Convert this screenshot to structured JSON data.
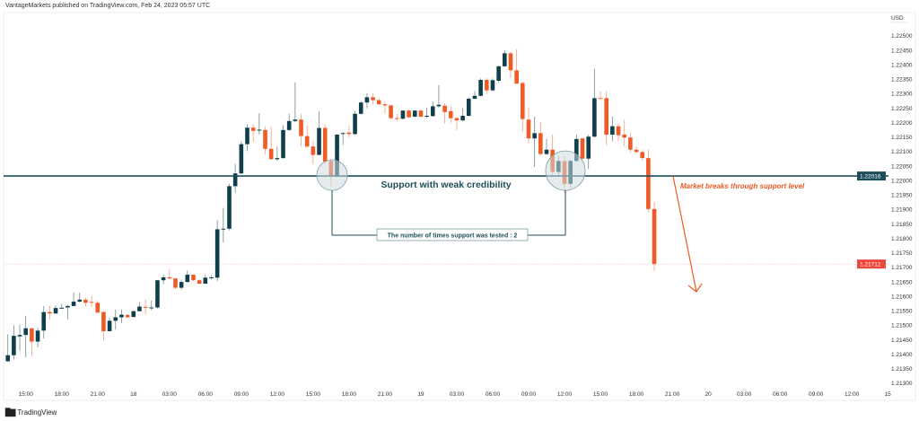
{
  "header": {
    "published": "VantageMarkets published on TradingView.com, Feb 24, 2023 05:57 UTC"
  },
  "footer": {
    "brand": "TradingView",
    "logo_icon": "tradingview-logo-icon"
  },
  "colors": {
    "up": "#0f3f4a",
    "down": "#f05a24",
    "support_line": "#1d4f5a",
    "circle_fill": "#cfdde0",
    "last_price": "#f0463c",
    "annotation_orange": "#f05a24"
  },
  "chart_data": {
    "type": "candlestick",
    "currency_label": "USD",
    "ylim": [
      1.21275,
      1.22525
    ],
    "y_ticks": [
      "1.22500",
      "1.22450",
      "1.22400",
      "1.22350",
      "1.22300",
      "1.22250",
      "1.22200",
      "1.22150",
      "1.22100",
      "1.22050",
      "1.22000",
      "1.21950",
      "1.21900",
      "1.21850",
      "1.21800",
      "1.21750",
      "1.21700",
      "1.21650",
      "1.21600",
      "1.21550",
      "1.21500",
      "1.21450",
      "1.21400",
      "1.21350",
      "1.21300"
    ],
    "x_ticks": [
      "15:00",
      "18:00",
      "21:00",
      "18",
      "03:00",
      "06:00",
      "09:00",
      "12:00",
      "15:00",
      "18:00",
      "21:00",
      "19",
      "03:00",
      "06:00",
      "09:00",
      "12:00",
      "15:00",
      "18:00",
      "21:00",
      "20",
      "03:00",
      "06:00",
      "09:00",
      "12:00",
      "15"
    ],
    "candles_ohlc": [
      [
        1.21376,
        1.21469,
        1.21375,
        1.21397
      ],
      [
        1.21397,
        1.215,
        1.21382,
        1.21464
      ],
      [
        1.21462,
        1.21503,
        1.21413,
        1.21467
      ],
      [
        1.21467,
        1.21533,
        1.2139,
        1.2149
      ],
      [
        1.2149,
        1.21492,
        1.21394,
        1.21444
      ],
      [
        1.21444,
        1.21492,
        1.21424,
        1.21482
      ],
      [
        1.21482,
        1.21567,
        1.21455,
        1.21546
      ],
      [
        1.21546,
        1.21568,
        1.21521,
        1.21541
      ],
      [
        1.21541,
        1.21569,
        1.21541,
        1.2156
      ],
      [
        1.21559,
        1.21574,
        1.21557,
        1.21561
      ],
      [
        1.21562,
        1.2157,
        1.21521,
        1.21567
      ],
      [
        1.21567,
        1.21614,
        1.21567,
        1.21582
      ],
      [
        1.21582,
        1.21613,
        1.2158,
        1.21589
      ],
      [
        1.21589,
        1.21596,
        1.21565,
        1.21578
      ],
      [
        1.21581,
        1.21601,
        1.21565,
        1.2158
      ],
      [
        1.21578,
        1.21585,
        1.21544,
        1.21544
      ],
      [
        1.21546,
        1.21549,
        1.21449,
        1.2148
      ],
      [
        1.2148,
        1.21527,
        1.2148,
        1.21516
      ],
      [
        1.21516,
        1.21555,
        1.21485,
        1.21528
      ],
      [
        1.21528,
        1.21555,
        1.21508,
        1.21537
      ],
      [
        1.21536,
        1.21539,
        1.21526,
        1.21528
      ],
      [
        1.21529,
        1.21551,
        1.21529,
        1.21549
      ],
      [
        1.21549,
        1.2158,
        1.21549,
        1.21565
      ],
      [
        1.21564,
        1.21589,
        1.21537,
        1.21563
      ],
      [
        1.21561,
        1.21586,
        1.21552,
        1.21562
      ],
      [
        1.21562,
        1.21656,
        1.21558,
        1.21656
      ],
      [
        1.21656,
        1.21676,
        1.21642,
        1.21666
      ],
      [
        1.21666,
        1.21694,
        1.2166,
        1.21662
      ],
      [
        1.21662,
        1.21665,
        1.21624,
        1.2163
      ],
      [
        1.2163,
        1.21658,
        1.21624,
        1.2165
      ],
      [
        1.2165,
        1.21689,
        1.21648,
        1.21675
      ],
      [
        1.21675,
        1.21675,
        1.21653,
        1.21656
      ],
      [
        1.21656,
        1.2166,
        1.21642,
        1.21644
      ],
      [
        1.21644,
        1.21675,
        1.21644,
        1.21665
      ],
      [
        1.21665,
        1.21673,
        1.21658,
        1.21666
      ],
      [
        1.21665,
        1.21864,
        1.21653,
        1.21832
      ],
      [
        1.21832,
        1.21906,
        1.21787,
        1.21834
      ],
      [
        1.21834,
        1.21989,
        1.21828,
        1.21981
      ],
      [
        1.21981,
        1.22058,
        1.21958,
        1.22025
      ],
      [
        1.22025,
        1.22136,
        1.22023,
        1.22126
      ],
      [
        1.22126,
        1.22195,
        1.22102,
        1.22183
      ],
      [
        1.22183,
        1.22195,
        1.22133,
        1.22172
      ],
      [
        1.22175,
        1.22233,
        1.22159,
        1.22176
      ],
      [
        1.22175,
        1.22188,
        1.22092,
        1.2211
      ],
      [
        1.2211,
        1.22185,
        1.22074,
        1.22074
      ],
      [
        1.22074,
        1.22118,
        1.22068,
        1.22078
      ],
      [
        1.22078,
        1.22192,
        1.22076,
        1.22175
      ],
      [
        1.22175,
        1.22231,
        1.22171,
        1.22206
      ],
      [
        1.22206,
        1.2234,
        1.22202,
        1.22211
      ],
      [
        1.22211,
        1.22231,
        1.22118,
        1.22154
      ],
      [
        1.22154,
        1.2219,
        1.22113,
        1.22118
      ],
      [
        1.22118,
        1.22138,
        1.22056,
        1.22089
      ],
      [
        1.22089,
        1.2224,
        1.22087,
        1.22182
      ],
      [
        1.22182,
        1.22195,
        1.22056,
        1.22066
      ],
      [
        1.22068,
        1.22076,
        1.21978,
        1.22016
      ],
      [
        1.22014,
        1.22161,
        1.22012,
        1.22159
      ],
      [
        1.22163,
        1.22169,
        1.22123,
        1.22164
      ],
      [
        1.22166,
        1.2219,
        1.22149,
        1.22161
      ],
      [
        1.22161,
        1.22242,
        1.22159,
        1.22231
      ],
      [
        1.22231,
        1.22275,
        1.22228,
        1.2227
      ],
      [
        1.2227,
        1.22302,
        1.2225,
        1.22288
      ],
      [
        1.22288,
        1.22302,
        1.22264,
        1.22278
      ],
      [
        1.22278,
        1.22283,
        1.2226,
        1.22264
      ],
      [
        1.22264,
        1.22273,
        1.22231,
        1.2226
      ],
      [
        1.2226,
        1.22262,
        1.22211,
        1.22216
      ],
      [
        1.22216,
        1.22231,
        1.22206,
        1.22215
      ],
      [
        1.22214,
        1.22243,
        1.22211,
        1.22242
      ],
      [
        1.22242,
        1.22244,
        1.22216,
        1.22219
      ],
      [
        1.22221,
        1.22244,
        1.22219,
        1.22242
      ],
      [
        1.22242,
        1.22244,
        1.22219,
        1.22221
      ],
      [
        1.22223,
        1.22252,
        1.22216,
        1.22224
      ],
      [
        1.22223,
        1.22273,
        1.22221,
        1.22257
      ],
      [
        1.22257,
        1.2233,
        1.22252,
        1.22262
      ],
      [
        1.22259,
        1.22268,
        1.22198,
        1.22237
      ],
      [
        1.2224,
        1.22255,
        1.222,
        1.22216
      ],
      [
        1.22216,
        1.22221,
        1.22175,
        1.22208
      ],
      [
        1.22208,
        1.2225,
        1.22206,
        1.22224
      ],
      [
        1.22224,
        1.22288,
        1.22221,
        1.22283
      ],
      [
        1.22283,
        1.22309,
        1.22281,
        1.22293
      ],
      [
        1.22293,
        1.22353,
        1.22291,
        1.22348
      ],
      [
        1.22348,
        1.22355,
        1.22299,
        1.22312
      ],
      [
        1.22312,
        1.22353,
        1.22309,
        1.22347
      ],
      [
        1.22345,
        1.22397,
        1.2234,
        1.22395
      ],
      [
        1.22395,
        1.2245,
        1.22392,
        1.2244
      ],
      [
        1.2244,
        1.22446,
        1.22355,
        1.22381
      ],
      [
        1.22381,
        1.22454,
        1.22335,
        1.22335
      ],
      [
        1.22337,
        1.22343,
        1.22169,
        1.22213
      ],
      [
        1.22211,
        1.22252,
        1.22128,
        1.22146
      ],
      [
        1.22146,
        1.22221,
        1.22047,
        1.22164
      ],
      [
        1.22164,
        1.22202,
        1.22087,
        1.22092
      ],
      [
        1.22092,
        1.22144,
        1.22089,
        1.22107
      ],
      [
        1.22107,
        1.22159,
        1.22014,
        1.2203
      ],
      [
        1.2203,
        1.22085,
        1.22014,
        1.22068
      ],
      [
        1.22068,
        1.22085,
        1.21958,
        1.21989
      ],
      [
        1.21989,
        1.22071,
        1.21975,
        1.22068
      ],
      [
        1.22068,
        1.22159,
        1.22066,
        1.22144
      ],
      [
        1.22146,
        1.22149,
        1.22073,
        1.22076
      ],
      [
        1.22076,
        1.22159,
        1.2204,
        1.22152
      ],
      [
        1.22152,
        1.22386,
        1.22149,
        1.22285
      ],
      [
        1.22285,
        1.22309,
        1.22283,
        1.22284
      ],
      [
        1.22285,
        1.22309,
        1.22123,
        1.22159
      ],
      [
        1.22159,
        1.22221,
        1.22136,
        1.22188
      ],
      [
        1.22188,
        1.22198,
        1.22136,
        1.22157
      ],
      [
        1.22159,
        1.22211,
        1.22118,
        1.22149
      ],
      [
        1.22149,
        1.22164,
        1.22097,
        1.22107
      ],
      [
        1.22107,
        1.22118,
        1.22095,
        1.22099
      ],
      [
        1.22099,
        1.22107,
        1.22071,
        1.22078
      ],
      [
        1.22078,
        1.22107,
        1.2189,
        1.21902
      ],
      [
        1.21902,
        1.21926,
        1.21689,
        1.21712
      ]
    ],
    "support_level": 1.22016,
    "support_level_label": "1.22016",
    "last_price": 1.21712,
    "last_price_label": "1.21712",
    "annotations": {
      "support_text": "Support with weak credibility",
      "tests_text": "The number of times support was tested : 2",
      "break_text": "Market breaks through support level"
    }
  }
}
